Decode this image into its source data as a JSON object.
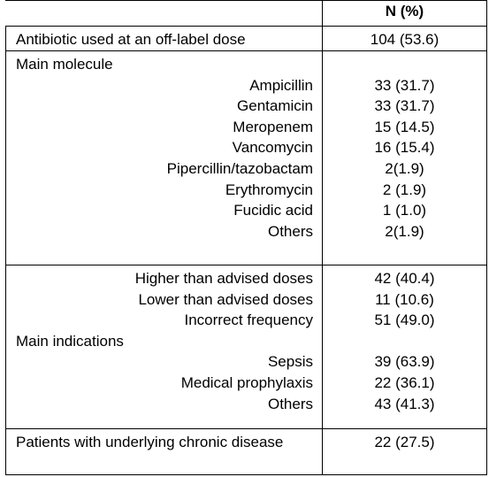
{
  "table": {
    "header": {
      "value_column": "N (%)"
    },
    "blocks": [
      [
        {
          "label": "Antibiotic used at an off-label dose",
          "value": "104 (53.6)"
        }
      ],
      [
        {
          "heading": "Main molecule"
        },
        {
          "item": "Ampicillin",
          "value": "33 (31.7)"
        },
        {
          "item": "Gentamicin",
          "value": "33 (31.7)"
        },
        {
          "item": "Meropenem",
          "value": "15 (14.5)"
        },
        {
          "item": "Vancomycin",
          "value": "16 (15.4)"
        },
        {
          "item": "Pipercillin/tazobactam",
          "value": "2(1.9)"
        },
        {
          "item": "Erythromycin",
          "value": "2 (1.9)"
        },
        {
          "item": "Fucidic acid",
          "value": "1 (1.0)"
        },
        {
          "item": "Others",
          "value": "2(1.9)"
        }
      ],
      [
        {
          "item": "Higher than advised doses",
          "value": "42 (40.4)"
        },
        {
          "item": "Lower than advised doses",
          "value": "11 (10.6)"
        },
        {
          "item": "Incorrect frequency",
          "value": "51 (49.0)"
        },
        {
          "heading": "Main indications"
        },
        {
          "item": "Sepsis",
          "value": "39 (63.9)"
        },
        {
          "item": "Medical prophylaxis",
          "value": "22 (36.1)"
        },
        {
          "item": "Others",
          "value": "43 (41.3)"
        }
      ],
      [
        {
          "label": "Patients with underlying chronic disease",
          "value": "22 (27.5)"
        }
      ]
    ]
  }
}
